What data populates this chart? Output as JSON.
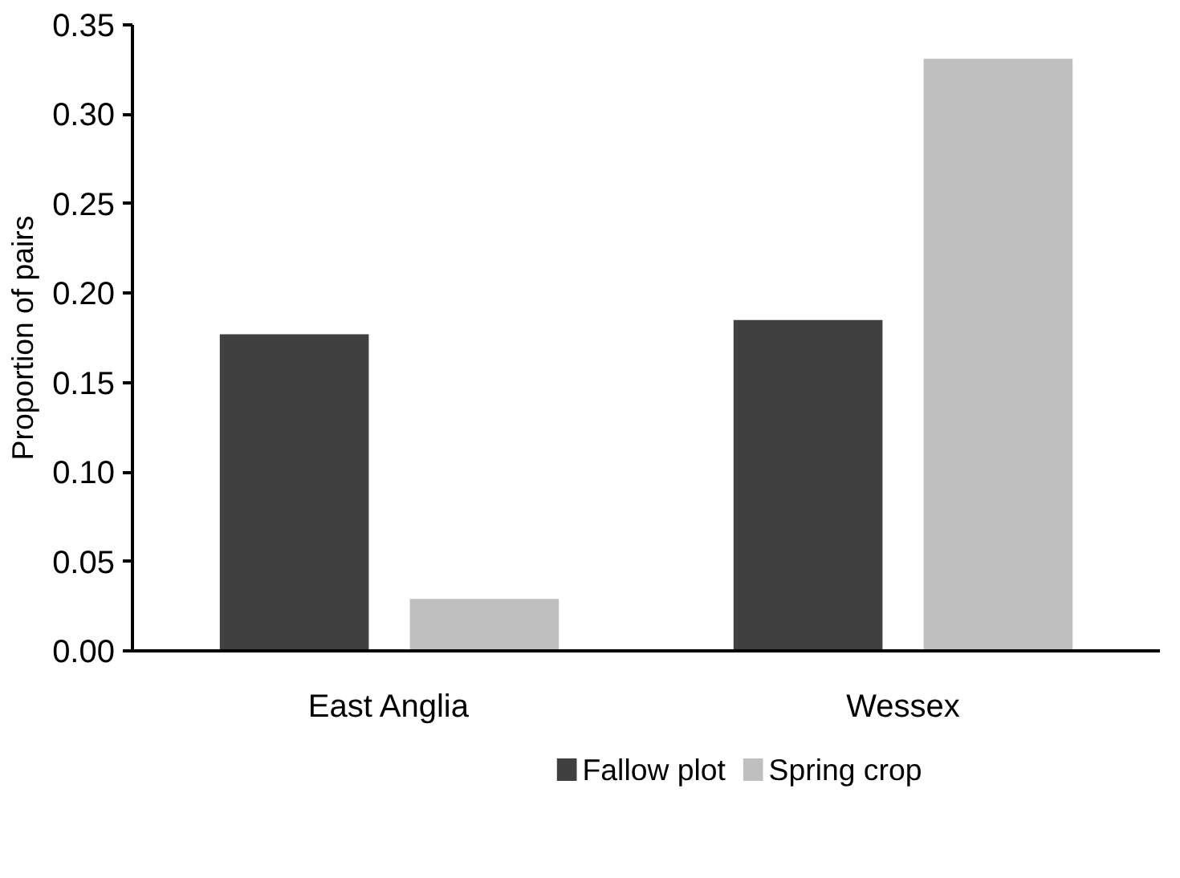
{
  "chart_data": {
    "type": "bar",
    "ylabel": "Proportion of pairs",
    "categories": [
      "East Anglia",
      "Wessex"
    ],
    "series": [
      {
        "name": "Fallow plot",
        "color": "#404040",
        "values": [
          0.177,
          0.185
        ]
      },
      {
        "name": "Spring crop",
        "color": "#bfbfbf",
        "values": [
          0.029,
          0.331
        ]
      }
    ],
    "ylim": [
      0,
      0.35
    ],
    "yticks": [
      {
        "value": 0,
        "label": "0.00"
      },
      {
        "value": 0.05,
        "label": "0.05"
      },
      {
        "value": 0.1,
        "label": "0.10"
      },
      {
        "value": 0.15,
        "label": "0.15"
      },
      {
        "value": 0.2,
        "label": "0.20"
      },
      {
        "value": 0.25,
        "label": "0.25"
      },
      {
        "value": 0.3,
        "label": "0.30"
      },
      {
        "value": 0.35,
        "label": "0.35"
      }
    ],
    "grid": false,
    "legend": "bottom"
  }
}
